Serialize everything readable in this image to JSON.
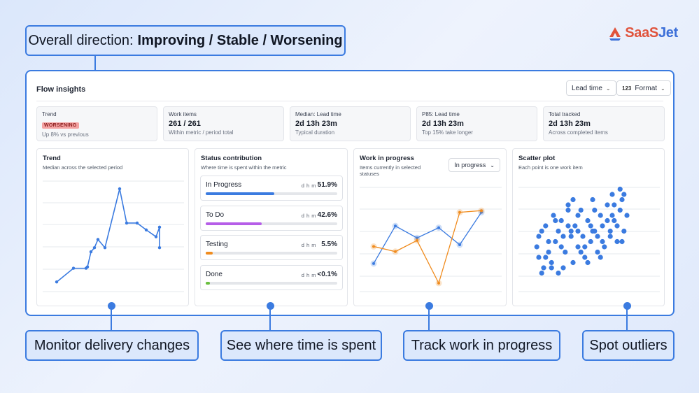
{
  "callouts": {
    "top_prefix": "Overall direction:",
    "top_bold": "Improving / Stable / Worsening",
    "bottom": [
      "Monitor delivery changes",
      "See where time is spent",
      "Track work in progress",
      "Spot outliers"
    ]
  },
  "brand": {
    "name_a": "SaaS",
    "name_b": "Jet",
    "colors": {
      "primary": "#e0533c",
      "secondary": "#3b6fd8"
    }
  },
  "header": {
    "title": "Flow insights",
    "lead_time_select": "Lead time",
    "format_icon": "123",
    "format_label": "Format"
  },
  "stats": [
    {
      "label": "Trend",
      "badge": "WORSENING",
      "sub": "Up 8% vs previous"
    },
    {
      "label": "Work items",
      "value": "261 / 261",
      "sub": "Within metric / period total"
    },
    {
      "label": "Median: Lead time",
      "value": "2d 13h 23m",
      "sub": "Typical duration"
    },
    {
      "label": "P85: Lead time",
      "value": "2d 13h 23m",
      "sub": "Top 15% take longer"
    },
    {
      "label": "Total tracked",
      "value": "2d 13h 23m",
      "sub": "Across completed items"
    }
  ],
  "trend": {
    "title": "Trend",
    "subtitle": "Median across the selected period",
    "line_color": "#3b7be0",
    "values": [
      5,
      15,
      15,
      16,
      27,
      30,
      36,
      30,
      73,
      48,
      48,
      43,
      38,
      45,
      30
    ]
  },
  "status": {
    "title": "Status contribution",
    "subtitle": "Where time is spent within the metric",
    "unit": "d h m",
    "rows": [
      {
        "name": "In Progress",
        "pct": "51.9%",
        "value": 51.9,
        "color": "#3b7be0"
      },
      {
        "name": "To Do",
        "pct": "42.6%",
        "value": 42.6,
        "color": "#b65ee8"
      },
      {
        "name": "Testing",
        "pct": "5.5%",
        "value": 5.5,
        "color": "#f08c1f"
      },
      {
        "name": "Done",
        "pct": "<0.1%",
        "value": 0.1,
        "color": "#6abf3f"
      }
    ]
  },
  "wip": {
    "title": "Work in progress",
    "subtitle_1": "Items currently in selected",
    "subtitle_2": "statuses",
    "select": "In progress",
    "series": [
      {
        "color": "#3b7be0",
        "values": [
          28,
          72,
          58,
          70,
          50,
          88
        ]
      },
      {
        "color": "#f08c1f",
        "values": [
          48,
          42,
          55,
          5,
          88,
          90
        ]
      }
    ]
  },
  "scatter": {
    "title": "Scatter plot",
    "subtitle": "Each point is one work item",
    "color": "#3b7be0"
  },
  "chart_data": [
    {
      "type": "line",
      "series": [
        {
          "values": [
            5,
            15,
            15,
            16,
            27,
            30,
            36,
            30,
            73,
            48,
            48,
            43,
            38,
            45,
            30
          ]
        }
      ]
    },
    {
      "type": "bar",
      "categories": [
        "In Progress",
        "To Do",
        "Testing",
        "Done"
      ],
      "values": [
        51.9,
        42.6,
        5.5,
        0.1
      ]
    },
    {
      "type": "line",
      "series": [
        {
          "values": [
            28,
            72,
            58,
            70,
            50,
            88
          ]
        },
        {
          "values": [
            48,
            42,
            55,
            5,
            88,
            90
          ]
        }
      ]
    },
    {
      "type": "scatter",
      "x": [
        3,
        5,
        8,
        10,
        12,
        15,
        18,
        20,
        22,
        25,
        28,
        30,
        32,
        35,
        38,
        40,
        42,
        45,
        48,
        50,
        52,
        55,
        58,
        60,
        62,
        65,
        68,
        70,
        72,
        75,
        78,
        80,
        82,
        85,
        88,
        90,
        92,
        95,
        8,
        15,
        22,
        30,
        38,
        45,
        52,
        60,
        68,
        75,
        82,
        90,
        12,
        25,
        35,
        48,
        58,
        70,
        80,
        92,
        18,
        40,
        62,
        85,
        28,
        55,
        78,
        5,
        35,
        65,
        88,
        45
      ],
      "y": [
        40,
        30,
        55,
        20,
        60,
        35,
        25,
        70,
        45,
        15,
        65,
        50,
        35,
        80,
        55,
        25,
        60,
        40,
        75,
        50,
        30,
        65,
        45,
        85,
        55,
        35,
        70,
        60,
        40,
        80,
        50,
        90,
        65,
        45,
        75,
        85,
        55,
        70,
        15,
        45,
        65,
        20,
        50,
        70,
        40,
        55,
        30,
        65,
        80,
        45,
        30,
        55,
        75,
        35,
        60,
        45,
        70,
        90,
        20,
        85,
        75,
        60,
        40,
        25,
        55,
        50,
        60,
        50,
        95,
        55
      ]
    }
  ]
}
